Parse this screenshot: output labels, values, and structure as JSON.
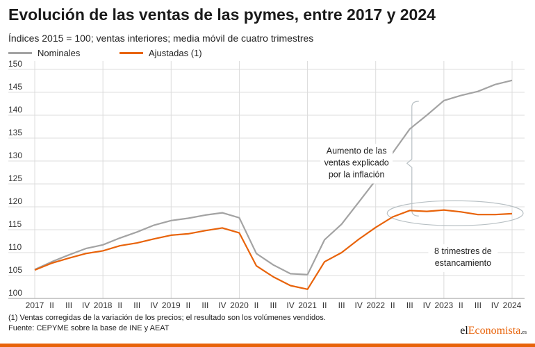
{
  "header": {
    "title": "Evolución de las ventas de las pymes, entre 2017 y 2024",
    "subtitle": "Índices 2015 = 100; ventas interiores; media móvil de cuatro trimestres"
  },
  "chart_data": {
    "type": "line",
    "title": "Evolución de las ventas de las pymes, entre 2017 y 2024",
    "subtitle": "Índices 2015 = 100; ventas interiores; media móvil de cuatro trimestres",
    "xlabel": "",
    "ylabel": "",
    "ylim": [
      100,
      150
    ],
    "yticks": [
      100,
      105,
      110,
      115,
      120,
      125,
      130,
      135,
      140,
      145,
      150
    ],
    "grid": true,
    "legend_position": "top-left",
    "categories": [
      "2017",
      "II",
      "III",
      "IV",
      "2018",
      "II",
      "III",
      "IV",
      "2019",
      "II",
      "III",
      "IV",
      "2020",
      "II",
      "III",
      "IV",
      "2021",
      "II",
      "III",
      "IV",
      "2022",
      "II",
      "III",
      "IV",
      "2023",
      "II",
      "III",
      "IV",
      "2024"
    ],
    "series": [
      {
        "name": "Nominales",
        "color": "#a3a3a3",
        "values": [
          106.3,
          108.0,
          109.5,
          110.9,
          111.7,
          113.2,
          114.5,
          116.0,
          117.0,
          117.5,
          118.2,
          118.7,
          117.6,
          109.8,
          107.3,
          105.4,
          105.2,
          112.8,
          116.2,
          121.0,
          125.8,
          131.8,
          137.0,
          140.0,
          143.2,
          144.3,
          145.2,
          146.7,
          147.6
        ]
      },
      {
        "name": "Ajustadas (1)",
        "color": "#e8630a",
        "values": [
          106.2,
          107.7,
          108.8,
          109.8,
          110.4,
          111.5,
          112.1,
          113.0,
          113.8,
          114.1,
          114.8,
          115.4,
          114.3,
          107.1,
          104.7,
          102.8,
          102.0,
          108.0,
          110.0,
          112.9,
          115.5,
          117.8,
          119.2,
          119.0,
          119.3,
          118.9,
          118.3,
          118.3,
          118.5
        ]
      }
    ],
    "annotations": {
      "inflation_label": [
        "Aumento de las",
        "ventas explicado",
        "por la inflación"
      ],
      "stagnation_label": [
        "8 trimestres de",
        "estancamiento"
      ]
    }
  },
  "footnotes": {
    "note1": "(1) Ventas corregidas de la variación de los precios; el resultado son los volúmenes vendidos.",
    "source": "Fuente: CEPYME sobre la base de INE y AEAT"
  },
  "brand": {
    "prefix": "el",
    "accent": "Economista",
    "suffix": ".es",
    "accent_color": "#e8630a"
  }
}
